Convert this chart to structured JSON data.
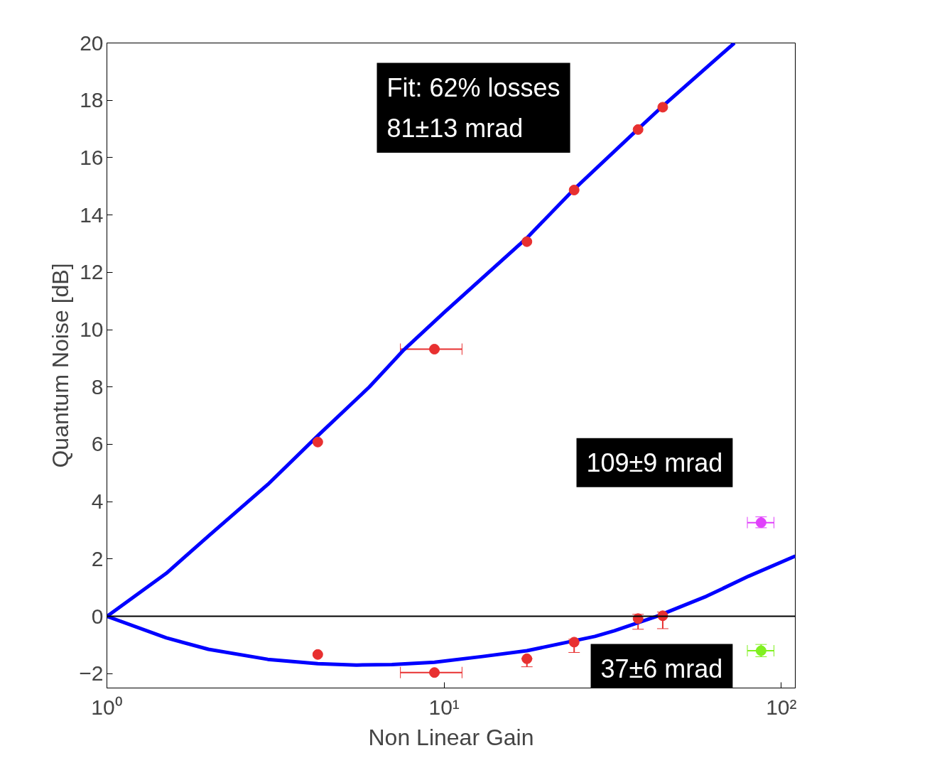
{
  "chart_data": {
    "type": "scatter",
    "xlabel": "Non Linear Gain",
    "ylabel": "Quantum Noise [dB]",
    "log": "x",
    "xlim": [
      1,
      110
    ],
    "xticks": [
      {
        "value": 1,
        "label": "10⁰"
      },
      {
        "value": 10,
        "label": "10¹"
      },
      {
        "value": 100,
        "label": "10²"
      }
    ],
    "ylim": [
      -2.5,
      20
    ],
    "yticks": [
      -2,
      0,
      2,
      4,
      6,
      8,
      10,
      12,
      14,
      16,
      18,
      20
    ],
    "grid": false,
    "marker": "circle",
    "series": [
      {
        "type": "line",
        "marker": "none",
        "color": "#0000ff",
        "x": [
          1,
          1.5,
          2,
          3,
          4.22,
          6,
          7.6,
          10,
          17.6,
          24.3,
          37.6,
          44.5,
          72.6
        ],
        "values": [
          0,
          1.5,
          2.8,
          4.6,
          6.3,
          8.0,
          9.3,
          10.6,
          13.2,
          14.9,
          17.0,
          17.8,
          20
        ]
      },
      {
        "type": "line",
        "marker": "none",
        "color": "#0000ff",
        "x": [
          1,
          1.5,
          2,
          3,
          4.22,
          5.5,
          7,
          9.36,
          13,
          17.6,
          28,
          32,
          42.7,
          60,
          80,
          110
        ],
        "values": [
          0,
          -0.75,
          -1.15,
          -1.5,
          -1.65,
          -1.7,
          -1.68,
          -1.6,
          -1.4,
          -1.2,
          -0.7,
          -0.5,
          0,
          0.7,
          1.4,
          2.1
        ]
      },
      {
        "color": "#e83030",
        "x": [
          4.22,
          9.36,
          17.6,
          24.3,
          37.6,
          44.5
        ],
        "values": [
          6.08,
          9.32,
          13.07,
          14.87,
          16.98,
          17.76
        ],
        "xerrors": [
          null,
          [
            7.42,
            11.3
          ],
          null,
          null,
          null,
          null
        ]
      },
      {
        "color": "#e83030",
        "x": [
          4.22,
          9.36,
          17.6,
          24.3,
          37.6,
          44.5
        ],
        "values": [
          -1.33,
          -1.96,
          -1.48,
          -0.9,
          -0.08,
          0.02
        ],
        "errors": [
          null,
          null,
          [
            -1.76,
            -1.48
          ],
          [
            -1.26,
            -0.8
          ],
          [
            -0.45,
            0.07
          ],
          [
            -0.43,
            0.15
          ]
        ],
        "xerrors": [
          null,
          [
            7.42,
            11.3
          ],
          null,
          null,
          null,
          null
        ]
      },
      {
        "color": "#e040fb",
        "x": [
          87.1
        ],
        "values": [
          3.27
        ],
        "errors": [
          [
            3.09,
            3.47
          ]
        ],
        "xerrors": [
          [
            79.3,
            95.1
          ]
        ]
      },
      {
        "color": "#80f020",
        "x": [
          87.1
        ],
        "values": [
          -1.2
        ],
        "errors": [
          [
            -1.41,
            -0.98
          ]
        ],
        "xerrors": [
          [
            79.3,
            95.1
          ]
        ]
      }
    ],
    "ref_lines": [
      {
        "axis": "y",
        "value": 0,
        "color": "#000000"
      }
    ],
    "annotations": [
      "Fit: 62% losses\n81±13 mrad",
      {
        "text": "109±9 mrad",
        "x": 87.1,
        "y": 3.27
      },
      {
        "text": "37±6 mrad",
        "x": 87.1,
        "y": -1.2
      }
    ]
  }
}
